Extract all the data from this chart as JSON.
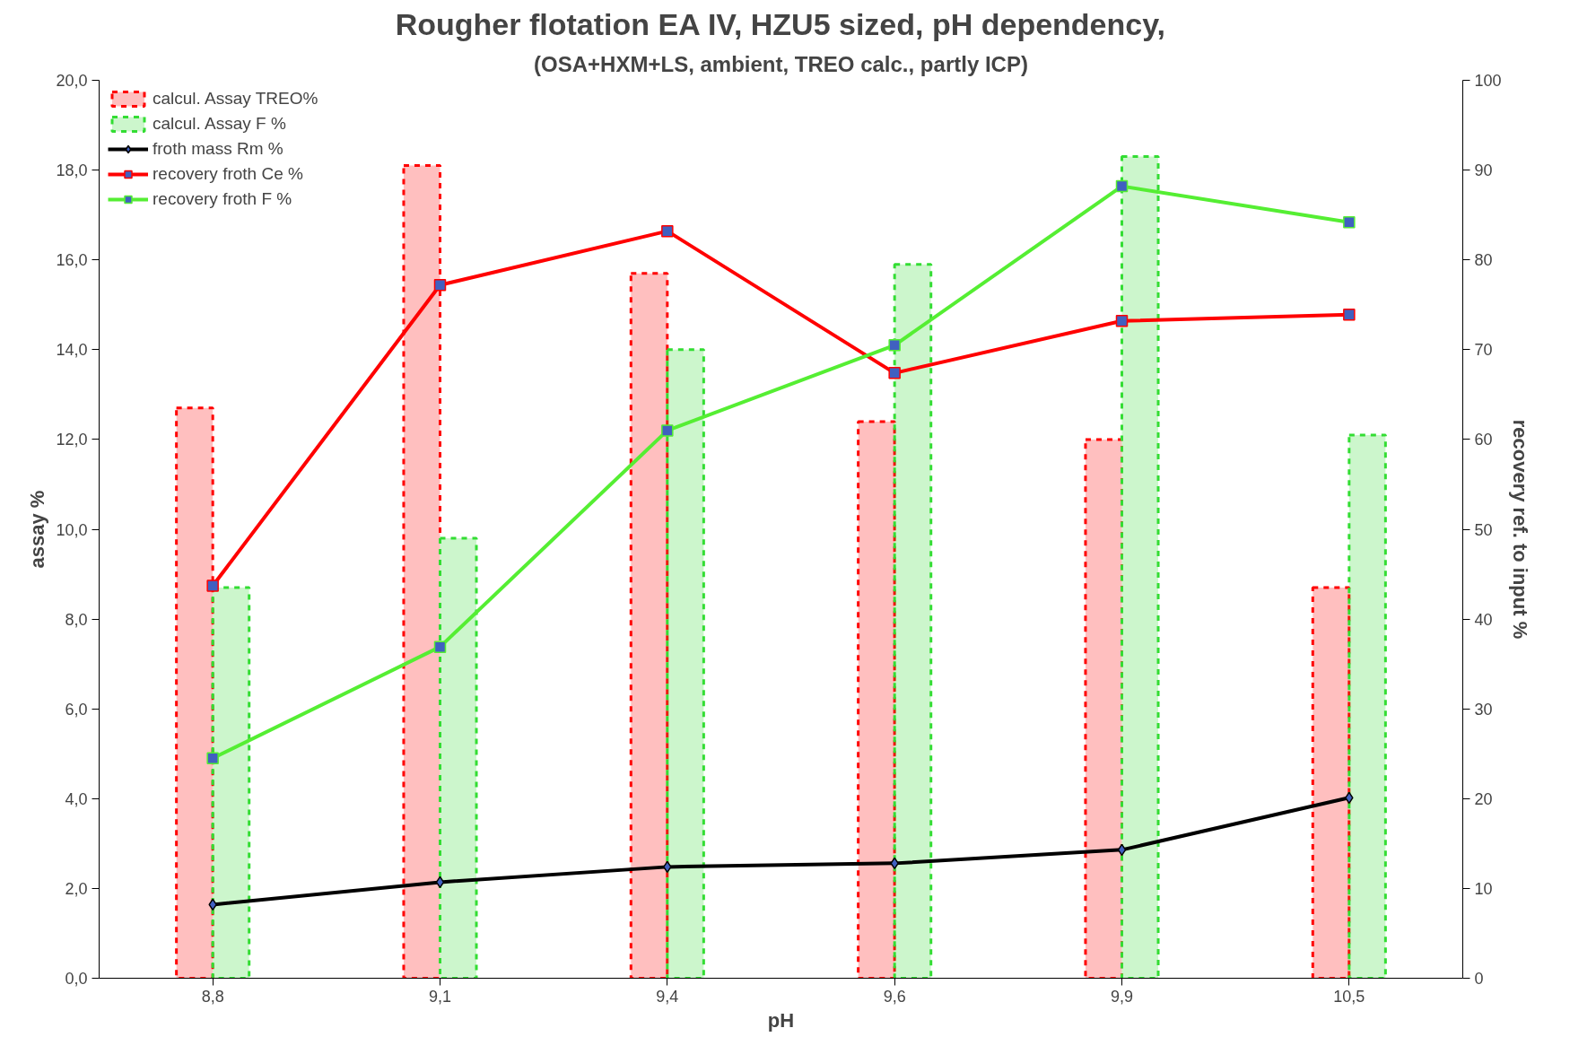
{
  "chart_data": {
    "type": "bar",
    "title": "Rougher flotation EA IV, HZU5 sized, pH dependency,",
    "subtitle": "(OSA+HXM+LS, ambient, TREO calc., partly ICP)",
    "xlabel": "pH",
    "ylabel": "assay %",
    "y2label": "recovery ref. to input %",
    "categories": [
      "8,8",
      "9,1",
      "9,4",
      "9,6",
      "9,9",
      "10,5"
    ],
    "series": [
      {
        "name": "calcul. Assay TREO%",
        "color": "#ff0000",
        "line_style": "dashed",
        "values": [
          12.7,
          18.1,
          15.7,
          12.4,
          12.0,
          8.7
        ]
      },
      {
        "name": "calcul. Assay F %",
        "color": "#33dd33",
        "line_style": "dashed",
        "values": [
          8.7,
          9.8,
          14.0,
          15.9,
          18.3,
          12.1
        ]
      },
      {
        "name": "froth mass Rm %",
        "type": "line",
        "axis": "y2",
        "color": "#000000",
        "marker": "diamond",
        "values": [
          8.2,
          10.7,
          12.4,
          12.8,
          14.3,
          20.1
        ]
      },
      {
        "name": "recovery froth Ce %",
        "type": "line",
        "axis": "y2",
        "color": "#ff0000",
        "marker": "square",
        "values": [
          43.7,
          77.2,
          83.2,
          67.4,
          73.2,
          73.9
        ]
      },
      {
        "name": "recovery froth F %",
        "type": "line",
        "axis": "y2",
        "color": "#55ee33",
        "marker": "square",
        "values": [
          24.5,
          36.9,
          61.0,
          70.5,
          88.2,
          84.2
        ]
      }
    ],
    "ylim": [
      0,
      20
    ],
    "yticks": [
      {
        "value": 0,
        "label": "0,0"
      },
      {
        "value": 2,
        "label": "2,0"
      },
      {
        "value": 4,
        "label": "4,0"
      },
      {
        "value": 6,
        "label": "6,0"
      },
      {
        "value": 8,
        "label": "8,0"
      },
      {
        "value": 10,
        "label": "10,0"
      },
      {
        "value": 12,
        "label": "12,0"
      },
      {
        "value": 14,
        "label": "14,0"
      },
      {
        "value": 16,
        "label": "16,0"
      },
      {
        "value": 18,
        "label": "18,0"
      },
      {
        "value": 20,
        "label": "20,0"
      }
    ],
    "y2lim": [
      0,
      100
    ],
    "y2ticks": [
      0,
      10,
      20,
      30,
      40,
      50,
      60,
      70,
      80,
      90,
      100
    ],
    "grid": false,
    "legend": "top left"
  }
}
